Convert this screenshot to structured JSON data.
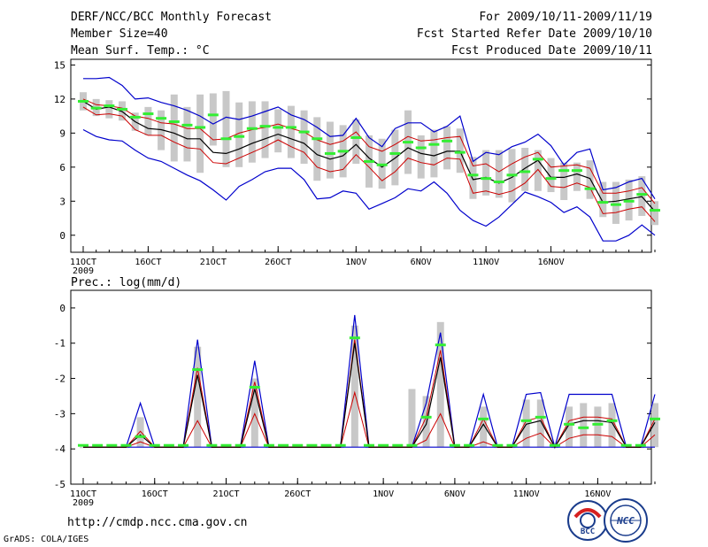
{
  "header": {
    "title": "DERF/NCC/BCC Monthly Forecast",
    "member_size": "Member Size=40",
    "variable": "Mean Surf. Temp.: °C",
    "period": "For 2009/10/11-2009/11/19",
    "started": "Fcst Started Refer Date 2009/10/10",
    "produced": "Fcst Produced Date 2009/10/11"
  },
  "footer": {
    "url": "http://cmdp.ncc.cma.gov.cn",
    "credit": "GrADS: COLA/IGES",
    "logo_bcc": "BCC",
    "logo_ncc": "NCC"
  },
  "colors": {
    "envelope": "#0000cc",
    "spread": "#cc0000",
    "mean": "#000000",
    "bar": "#c8c8c8",
    "green": "#33ee33"
  },
  "chart_data": [
    {
      "type": "line",
      "title": "Mean Surf. Temp.: °C",
      "ylim": [
        -1.5,
        15.5
      ],
      "yticks": [
        0,
        3,
        6,
        9,
        12,
        15
      ],
      "x_start_index": 0,
      "x_ticks": [
        {
          "i": 0,
          "label": "11OCT",
          "sub": "2009"
        },
        {
          "i": 5,
          "label": "16OCT"
        },
        {
          "i": 10,
          "label": "21OCT"
        },
        {
          "i": 15,
          "label": "26OCT"
        },
        {
          "i": 21,
          "label": "1NOV"
        },
        {
          "i": 26,
          "label": "6NOV"
        },
        {
          "i": 31,
          "label": "11NOV"
        },
        {
          "i": 36,
          "label": "16NOV"
        }
      ],
      "series": [
        {
          "name": "max",
          "values": [
            13.8,
            13.8,
            13.9,
            13.2,
            12.0,
            12.1,
            11.7,
            11.4,
            11.0,
            10.5,
            9.8,
            10.4,
            10.2,
            10.5,
            10.9,
            11.3,
            10.6,
            10.2,
            9.5,
            8.7,
            8.8,
            10.3,
            8.6,
            7.8,
            9.4,
            9.9,
            9.9,
            9.1,
            9.6,
            10.5,
            6.5,
            7.3,
            7.1,
            7.8,
            8.2,
            8.9,
            7.9,
            6.2,
            7.3,
            7.6,
            4.0,
            4.2,
            4.7,
            5.0,
            3.2
          ]
        },
        {
          "name": "upper",
          "values": [
            12.0,
            11.5,
            11.4,
            11.2,
            10.5,
            10.3,
            9.9,
            9.8,
            9.4,
            9.4,
            8.4,
            8.5,
            9.0,
            9.3,
            9.5,
            9.8,
            9.4,
            9.1,
            8.4,
            8.0,
            8.3,
            9.1,
            7.8,
            7.4,
            8.0,
            8.7,
            8.3,
            8.4,
            8.6,
            8.7,
            6.1,
            6.3,
            5.6,
            6.3,
            6.9,
            7.3,
            6.0,
            6.1,
            6.2,
            5.9,
            3.7,
            3.7,
            3.9,
            4.2,
            2.8
          ]
        },
        {
          "name": "mean",
          "values": [
            11.8,
            11.1,
            11.3,
            10.9,
            10.0,
            9.4,
            9.3,
            9.0,
            8.5,
            8.5,
            7.3,
            7.2,
            7.6,
            8.1,
            8.5,
            8.9,
            8.5,
            8.1,
            7.1,
            6.7,
            7.0,
            8.0,
            6.8,
            6.0,
            6.8,
            7.7,
            7.2,
            7.0,
            7.4,
            7.4,
            4.9,
            5.1,
            4.6,
            5.1,
            5.9,
            6.6,
            5.1,
            5.1,
            5.4,
            5.0,
            2.9,
            3.0,
            3.2,
            3.4,
            2.1
          ]
        },
        {
          "name": "lower",
          "values": [
            11.3,
            10.6,
            10.7,
            10.5,
            9.3,
            8.8,
            8.8,
            8.2,
            7.7,
            7.6,
            6.4,
            6.3,
            6.8,
            7.3,
            7.8,
            8.4,
            7.8,
            7.3,
            6.0,
            5.6,
            5.8,
            7.1,
            6.0,
            4.8,
            5.6,
            6.8,
            6.4,
            6.2,
            6.8,
            6.7,
            3.7,
            3.9,
            3.6,
            3.9,
            4.6,
            5.8,
            4.3,
            4.2,
            4.6,
            4.2,
            1.9,
            2.0,
            2.3,
            2.5,
            1.2
          ]
        },
        {
          "name": "min",
          "values": [
            9.3,
            8.7,
            8.4,
            8.3,
            7.5,
            6.8,
            6.5,
            5.9,
            5.3,
            4.8,
            4.0,
            3.1,
            4.3,
            4.9,
            5.6,
            5.9,
            5.9,
            4.9,
            3.2,
            3.3,
            3.9,
            3.7,
            2.3,
            2.8,
            3.3,
            4.1,
            3.9,
            4.7,
            3.7,
            2.2,
            1.3,
            0.8,
            1.6,
            2.7,
            3.8,
            3.4,
            2.9,
            2.0,
            2.5,
            1.6,
            -0.5,
            -0.5,
            0.0,
            0.9,
            0.0
          ]
        },
        {
          "name": "green",
          "values": [
            11.8,
            11.2,
            11.4,
            11.1,
            10.4,
            10.7,
            10.3,
            10.0,
            9.7,
            9.5,
            10.6,
            8.5,
            8.7,
            9.4,
            9.6,
            9.5,
            9.5,
            9.1,
            8.5,
            7.2,
            7.4,
            8.6,
            6.5,
            6.2,
            7.2,
            8.2,
            7.7,
            8.0,
            8.3,
            7.3,
            5.3,
            5.0,
            4.7,
            5.3,
            5.6,
            6.7,
            5.0,
            5.7,
            5.7,
            4.1,
            2.9,
            2.7,
            3.0,
            3.6,
            2.2
          ]
        },
        {
          "name": "bar_top",
          "values": [
            12.6,
            12.0,
            11.9,
            11.8,
            10.8,
            11.3,
            11.0,
            12.4,
            11.3,
            12.4,
            12.5,
            12.7,
            11.7,
            11.8,
            11.8,
            11.1,
            11.4,
            11.0,
            10.4,
            10.0,
            9.7,
            10.2,
            8.8,
            8.5,
            9.3,
            11.0,
            8.8,
            9.3,
            9.6,
            9.4,
            6.9,
            7.5,
            7.5,
            7.6,
            7.7,
            7.5,
            6.8,
            6.4,
            6.4,
            6.6,
            4.7,
            4.7,
            4.9,
            5.2,
            3.0
          ]
        },
        {
          "name": "bar_bottom",
          "values": [
            11.0,
            10.5,
            10.3,
            10.1,
            9.2,
            8.8,
            7.5,
            6.5,
            6.5,
            5.5,
            7.9,
            6.0,
            6.0,
            6.4,
            6.8,
            7.3,
            6.8,
            6.3,
            4.8,
            5.0,
            5.1,
            6.3,
            4.2,
            4.1,
            4.4,
            5.4,
            5.0,
            5.1,
            5.8,
            5.5,
            3.2,
            3.5,
            3.3,
            2.9,
            3.9,
            3.9,
            3.8,
            3.1,
            3.9,
            3.2,
            1.6,
            1.0,
            1.3,
            1.7,
            0.9
          ]
        }
      ]
    },
    {
      "type": "line",
      "title": "Prec.: log(mm/d)",
      "ylim": [
        -5,
        0.5
      ],
      "yticks": [
        0,
        -1,
        -2,
        -3,
        -4,
        -5
      ],
      "baseline": -3.95,
      "x_start_index": 0,
      "x_ticks": [
        {
          "i": 0,
          "label": "11OCT",
          "sub": "2009"
        },
        {
          "i": 5,
          "label": "16OCT"
        },
        {
          "i": 10,
          "label": "21OCT"
        },
        {
          "i": 15,
          "label": "26OCT"
        },
        {
          "i": 21,
          "label": "1NOV"
        },
        {
          "i": 26,
          "label": "6NOV"
        },
        {
          "i": 31,
          "label": "11NOV"
        },
        {
          "i": 36,
          "label": "16NOV"
        }
      ],
      "series": [
        {
          "name": "max",
          "values": [
            -3.95,
            -3.95,
            -3.95,
            -3.95,
            -2.7,
            -3.95,
            -3.95,
            -3.95,
            -0.9,
            -3.95,
            -3.95,
            -3.95,
            -1.5,
            -3.95,
            -3.95,
            -3.95,
            -3.95,
            -3.95,
            -3.95,
            -0.2,
            -3.95,
            -3.95,
            -3.95,
            -3.95,
            -2.7,
            -0.7,
            -3.95,
            -3.95,
            -2.45,
            -3.95,
            -3.95,
            -2.45,
            -2.4,
            -3.95,
            -2.45,
            -2.45,
            -2.45,
            -2.45,
            -3.95,
            -3.95,
            -2.45
          ]
        },
        {
          "name": "mean",
          "values": [
            -3.95,
            -3.95,
            -3.95,
            -3.95,
            -3.6,
            -3.95,
            -3.95,
            -3.95,
            -1.9,
            -3.95,
            -3.95,
            -3.95,
            -2.3,
            -3.95,
            -3.95,
            -3.95,
            -3.95,
            -3.95,
            -3.95,
            -1.0,
            -3.95,
            -3.95,
            -3.95,
            -3.95,
            -3.3,
            -1.4,
            -3.95,
            -3.95,
            -3.3,
            -3.95,
            -3.95,
            -3.3,
            -3.2,
            -3.95,
            -3.3,
            -3.2,
            -3.2,
            -3.25,
            -3.95,
            -3.95,
            -3.25
          ]
        },
        {
          "name": "upper",
          "values": [
            -3.95,
            -3.95,
            -3.95,
            -3.95,
            -3.5,
            -3.95,
            -3.95,
            -3.95,
            -1.7,
            -3.95,
            -3.95,
            -3.95,
            -2.1,
            -3.95,
            -3.95,
            -3.95,
            -3.95,
            -3.95,
            -3.95,
            -0.9,
            -3.95,
            -3.95,
            -3.95,
            -3.95,
            -3.1,
            -1.2,
            -3.95,
            -3.95,
            -3.15,
            -3.95,
            -3.95,
            -3.2,
            -3.1,
            -3.95,
            -3.2,
            -3.1,
            -3.1,
            -3.15,
            -3.95,
            -3.95,
            -3.15
          ]
        },
        {
          "name": "lower",
          "values": [
            -3.95,
            -3.95,
            -3.95,
            -3.95,
            -3.8,
            -3.95,
            -3.95,
            -3.95,
            -3.2,
            -3.95,
            -3.95,
            -3.95,
            -3.0,
            -3.95,
            -3.95,
            -3.95,
            -3.95,
            -3.95,
            -3.95,
            -2.4,
            -3.95,
            -3.95,
            -3.95,
            -3.95,
            -3.75,
            -3.0,
            -3.95,
            -3.95,
            -3.8,
            -3.95,
            -3.95,
            -3.7,
            -3.55,
            -3.95,
            -3.7,
            -3.6,
            -3.6,
            -3.65,
            -3.95,
            -3.95,
            -3.6
          ]
        },
        {
          "name": "min",
          "values": [
            -3.95,
            -3.95,
            -3.95,
            -3.95,
            -3.95,
            -3.95,
            -3.95,
            -3.95,
            -3.95,
            -3.95,
            -3.95,
            -3.95,
            -3.95,
            -3.95,
            -3.95,
            -3.95,
            -3.95,
            -3.95,
            -3.95,
            -3.95,
            -3.95,
            -3.95,
            -3.95,
            -3.95,
            -3.95,
            -3.95,
            -3.95,
            -3.95,
            -3.95,
            -3.95,
            -3.95,
            -3.95,
            -3.95,
            -3.95,
            -3.95,
            -3.95,
            -3.95,
            -3.95,
            -3.95,
            -3.95,
            -3.95
          ]
        },
        {
          "name": "green",
          "values": [
            -3.9,
            -3.9,
            -3.9,
            -3.9,
            -3.65,
            -3.9,
            -3.9,
            -3.9,
            -1.75,
            -3.9,
            -3.9,
            -3.9,
            -2.25,
            -3.9,
            -3.9,
            -3.9,
            -3.9,
            -3.9,
            -3.9,
            -0.85,
            -3.9,
            -3.9,
            -3.9,
            -3.9,
            -3.1,
            -1.05,
            -3.9,
            -3.9,
            -3.15,
            -3.9,
            -3.9,
            -3.2,
            -3.1,
            -3.9,
            -3.3,
            -3.4,
            -3.3,
            -3.2,
            -3.9,
            -3.9,
            -3.15
          ]
        },
        {
          "name": "bar_top",
          "values": [
            -3.95,
            -3.95,
            -3.95,
            -3.95,
            -3.1,
            -3.95,
            -3.95,
            -3.95,
            -1.1,
            -3.95,
            -3.95,
            -3.95,
            -2.0,
            -3.95,
            -3.95,
            -3.95,
            -3.95,
            -3.95,
            -3.95,
            -0.5,
            -3.95,
            -3.95,
            -3.95,
            -2.3,
            -2.5,
            -0.4,
            -3.95,
            -3.95,
            -2.8,
            -3.95,
            -3.95,
            -2.6,
            -2.6,
            -3.95,
            -2.8,
            -2.7,
            -2.8,
            -2.7,
            -3.95,
            -3.95,
            -2.7
          ]
        },
        {
          "name": "bar_bottom",
          "values": [
            -3.95,
            -3.95,
            -3.95,
            -3.95,
            -3.95,
            -3.95,
            -3.95,
            -3.95,
            -3.95,
            -3.95,
            -3.95,
            -3.95,
            -3.95,
            -3.95,
            -3.95,
            -3.95,
            -3.95,
            -3.95,
            -3.95,
            -3.95,
            -3.95,
            -3.95,
            -3.95,
            -3.95,
            -3.95,
            -3.95,
            -3.95,
            -3.95,
            -3.95,
            -3.95,
            -3.95,
            -3.95,
            -3.95,
            -3.95,
            -3.95,
            -3.95,
            -3.95,
            -3.95,
            -3.95,
            -3.95,
            -3.95
          ]
        }
      ]
    }
  ]
}
